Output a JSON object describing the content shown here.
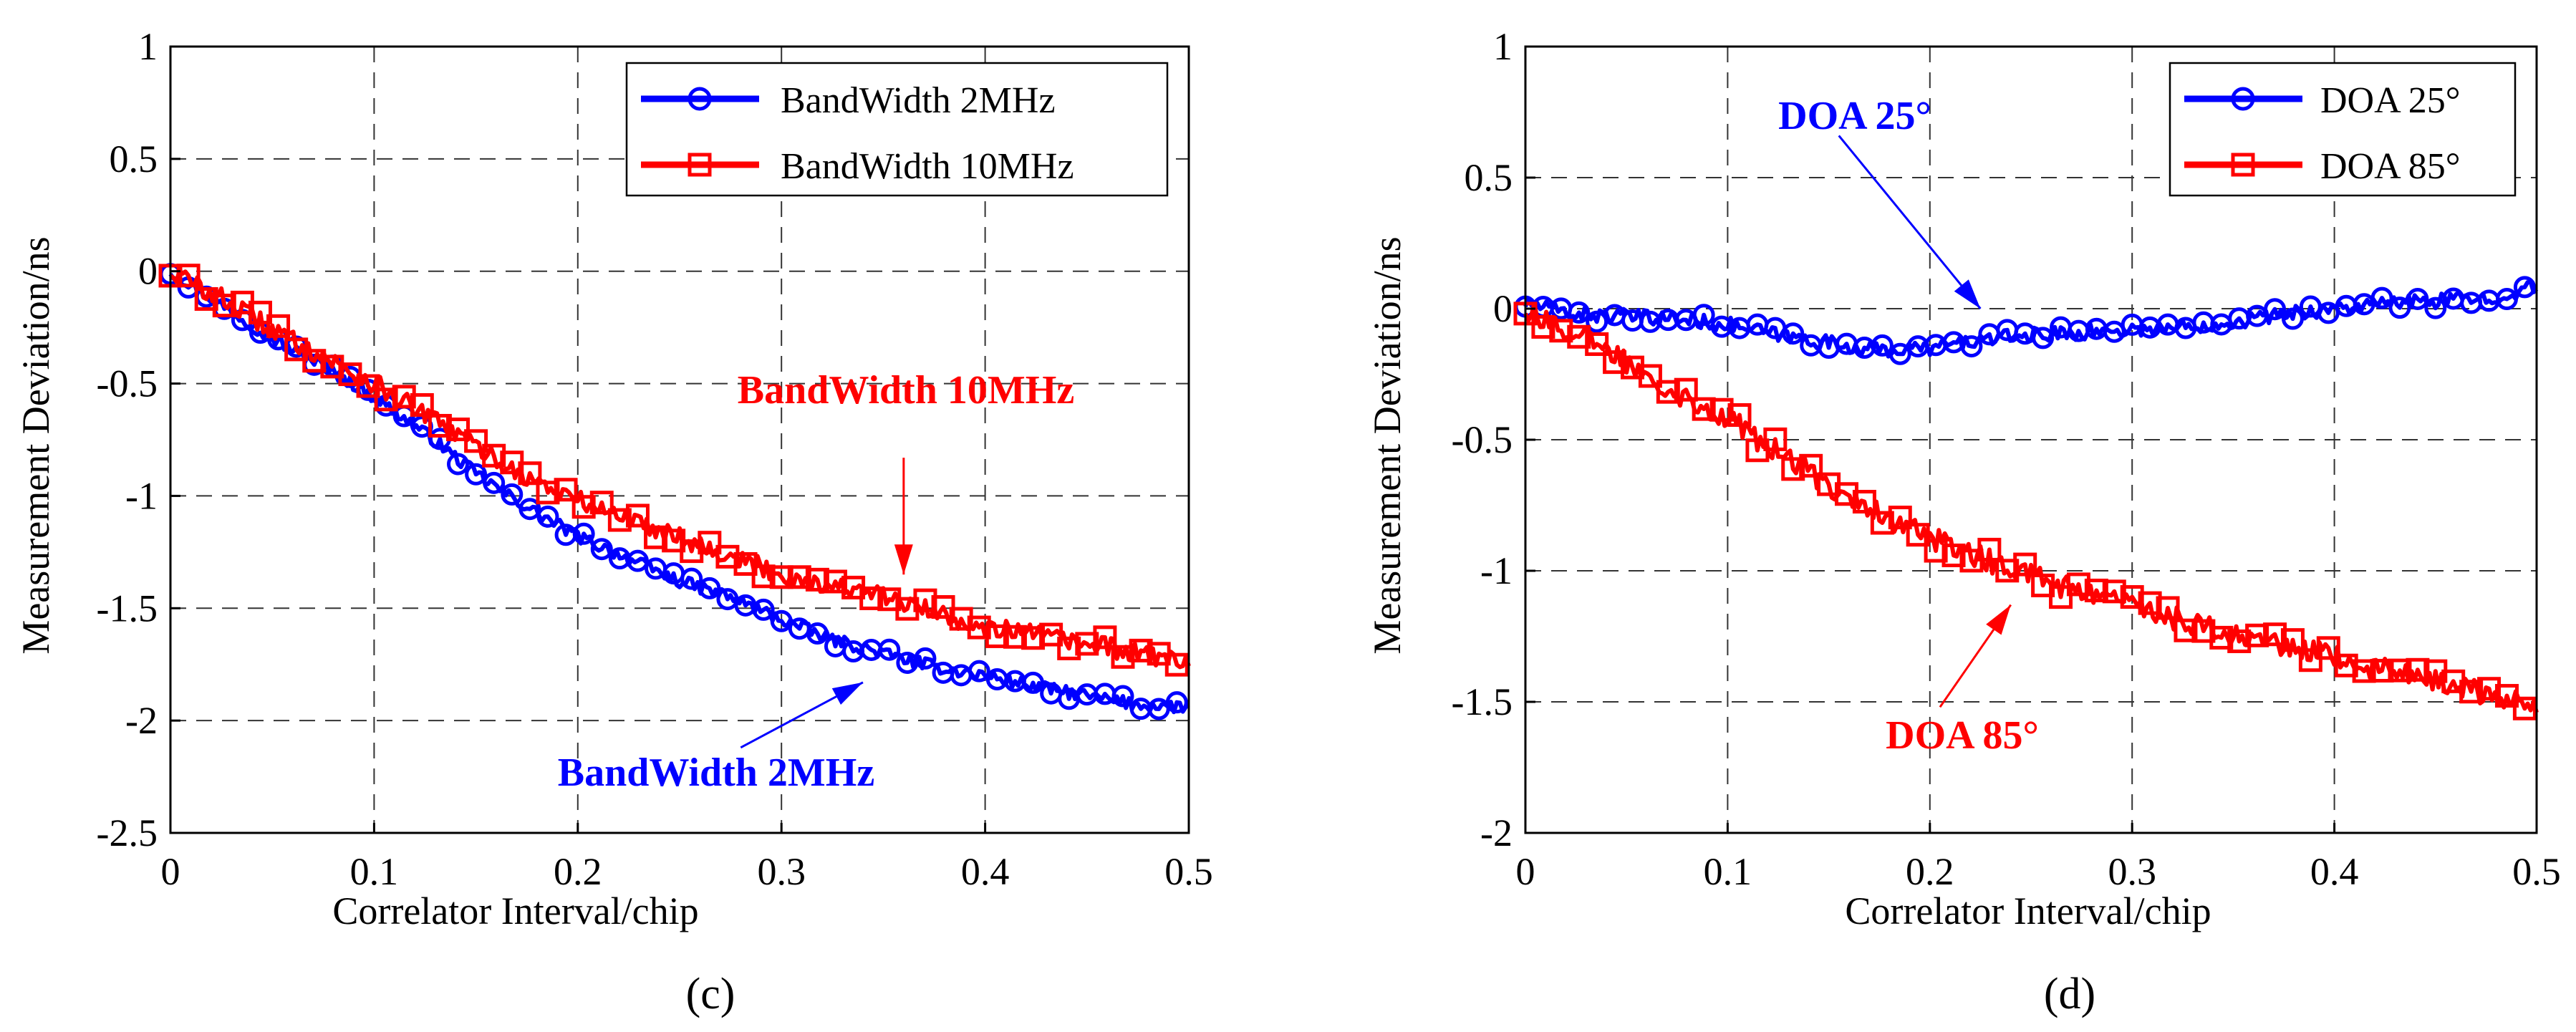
{
  "chart_data": [
    {
      "type": "line",
      "panel_label": "(c)",
      "xlabel": "Correlator Interval/chip",
      "ylabel": "Measurement Deviation/ns",
      "xlim": [
        0,
        0.5
      ],
      "ylim": [
        -2.5,
        1
      ],
      "xticks": [
        0,
        0.1,
        0.2,
        0.3,
        0.4,
        0.5
      ],
      "xtick_labels": [
        "0",
        "0.1",
        "0.2",
        "0.3",
        "0.4",
        "0.5"
      ],
      "yticks": [
        1,
        0.5,
        0,
        -0.5,
        -1,
        -1.5,
        -2,
        -2.5
      ],
      "ytick_labels": [
        "1",
        "0.5",
        "0",
        "-0.5",
        "-1",
        "-1.5",
        "-2",
        "-2.5"
      ],
      "grid": true,
      "legend_position": "top-right",
      "series": [
        {
          "name": "BandWidth 2MHz",
          "color": "#0000ff",
          "marker": "circle",
          "x": [
            0,
            0.025,
            0.05,
            0.075,
            0.1,
            0.125,
            0.15,
            0.175,
            0.2,
            0.225,
            0.25,
            0.275,
            0.3,
            0.325,
            0.35,
            0.375,
            0.4,
            0.425,
            0.45,
            0.475,
            0.5
          ],
          "y": [
            0,
            -0.15,
            -0.3,
            -0.42,
            -0.56,
            -0.72,
            -0.9,
            -1.05,
            -1.18,
            -1.28,
            -1.38,
            -1.45,
            -1.55,
            -1.64,
            -1.7,
            -1.76,
            -1.8,
            -1.85,
            -1.89,
            -1.93,
            -1.94
          ]
        },
        {
          "name": "BandWidth 10MHz",
          "color": "#ff0000",
          "marker": "square",
          "x": [
            0,
            0.025,
            0.05,
            0.075,
            0.1,
            0.125,
            0.15,
            0.175,
            0.2,
            0.225,
            0.25,
            0.275,
            0.3,
            0.325,
            0.35,
            0.375,
            0.4,
            0.425,
            0.45,
            0.475,
            0.5
          ],
          "y": [
            0,
            -0.12,
            -0.26,
            -0.38,
            -0.5,
            -0.64,
            -0.78,
            -0.92,
            -1.02,
            -1.1,
            -1.18,
            -1.27,
            -1.35,
            -1.4,
            -1.45,
            -1.52,
            -1.58,
            -1.62,
            -1.66,
            -1.7,
            -1.74
          ]
        }
      ],
      "annotations": [
        {
          "text": "BandWidth 10MHz",
          "color": "#ff0000",
          "arrow_tail": [
            0.36,
            -0.83
          ],
          "arrow_head": [
            0.36,
            -1.35
          ]
        },
        {
          "text": "BandWidth 2MHz",
          "color": "#0000ff",
          "arrow_tail": [
            0.28,
            -2.12
          ],
          "arrow_head": [
            0.34,
            -1.83
          ]
        }
      ]
    },
    {
      "type": "line",
      "panel_label": "(d)",
      "xlabel": "Correlator Interval/chip",
      "ylabel": "Measurement Deviation/ns",
      "xlim": [
        0,
        0.5
      ],
      "ylim": [
        -2,
        1
      ],
      "xticks": [
        0,
        0.1,
        0.2,
        0.3,
        0.4,
        0.5
      ],
      "xtick_labels": [
        "0",
        "0.1",
        "0.2",
        "0.3",
        "0.4",
        "0.5"
      ],
      "yticks": [
        1,
        0.5,
        0,
        -0.5,
        -1,
        -1.5,
        -2
      ],
      "ytick_labels": [
        "1",
        "0.5",
        "0",
        "-0.5",
        "-1",
        "-1.5",
        "-2"
      ],
      "grid": true,
      "legend_position": "top-right",
      "series": [
        {
          "name": "DOA 25°",
          "color": "#0000ff",
          "marker": "circle",
          "x": [
            0,
            0.025,
            0.05,
            0.075,
            0.1,
            0.125,
            0.15,
            0.175,
            0.2,
            0.225,
            0.25,
            0.275,
            0.3,
            0.325,
            0.35,
            0.375,
            0.4,
            0.425,
            0.45,
            0.475,
            0.5
          ],
          "y": [
            0.02,
            -0.02,
            -0.03,
            -0.04,
            -0.06,
            -0.1,
            -0.13,
            -0.16,
            -0.15,
            -0.12,
            -0.1,
            -0.09,
            -0.08,
            -0.07,
            -0.05,
            -0.02,
            0,
            0.02,
            0.03,
            0.04,
            0.08
          ]
        },
        {
          "name": "DOA 85°",
          "color": "#ff0000",
          "marker": "square",
          "x": [
            0,
            0.025,
            0.05,
            0.075,
            0.1,
            0.125,
            0.15,
            0.175,
            0.2,
            0.225,
            0.25,
            0.275,
            0.3,
            0.325,
            0.35,
            0.375,
            0.4,
            0.425,
            0.45,
            0.475,
            0.5
          ],
          "y": [
            0,
            -0.1,
            -0.2,
            -0.32,
            -0.42,
            -0.55,
            -0.67,
            -0.78,
            -0.87,
            -0.95,
            -1.02,
            -1.08,
            -1.13,
            -1.19,
            -1.24,
            -1.29,
            -1.33,
            -1.38,
            -1.42,
            -1.47,
            -1.5
          ]
        }
      ],
      "annotations": [
        {
          "text": "DOA 25°",
          "color": "#0000ff",
          "arrow_tail": [
            0.155,
            0.66
          ],
          "arrow_head": [
            0.225,
            0
          ]
        },
        {
          "text": "DOA 85°",
          "color": "#ff0000",
          "arrow_tail": [
            0.205,
            -1.52
          ],
          "arrow_head": [
            0.24,
            -1.13
          ]
        }
      ]
    }
  ]
}
